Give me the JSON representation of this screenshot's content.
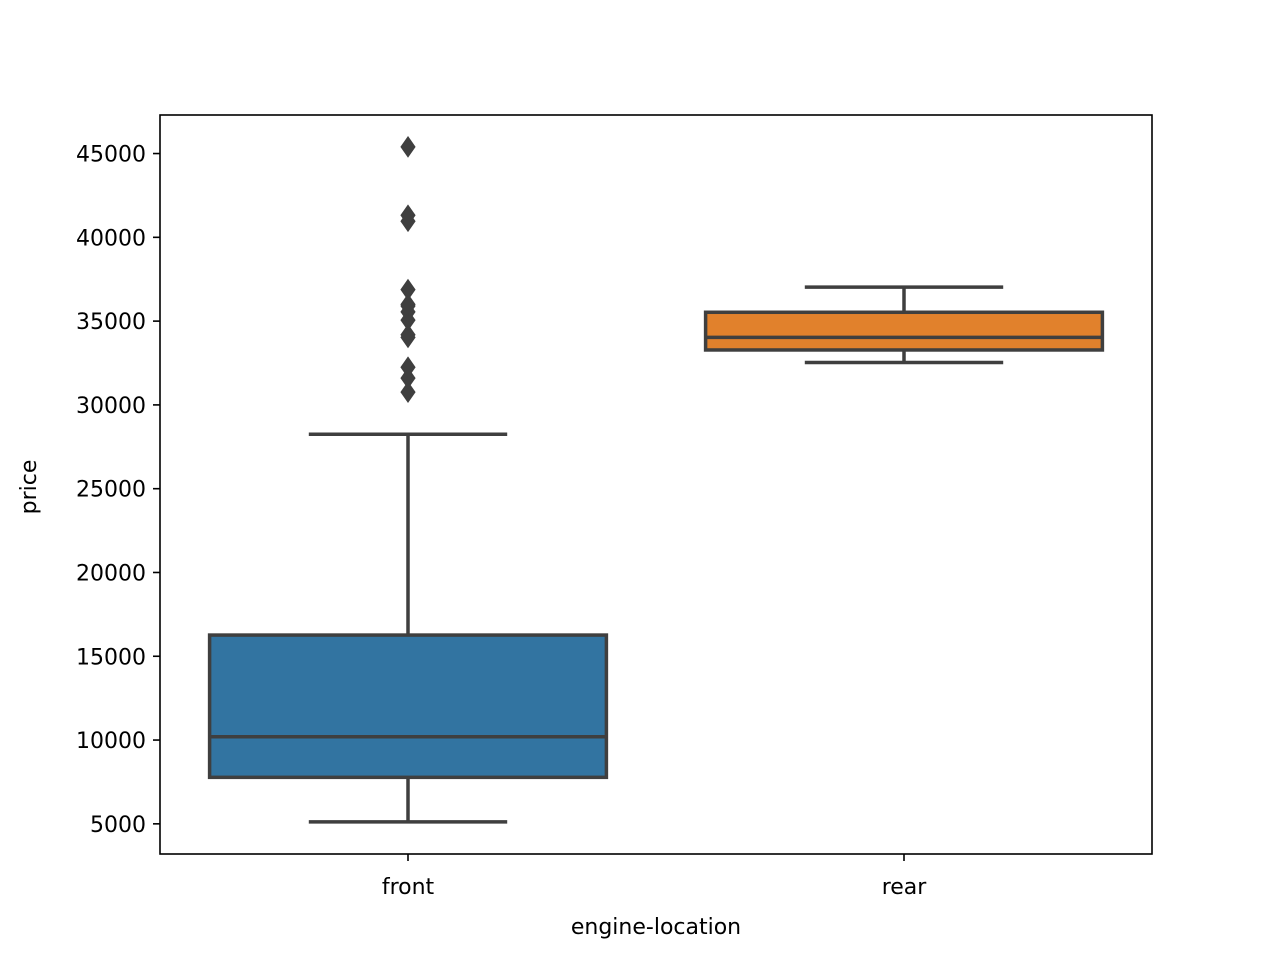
{
  "chart_data": {
    "type": "box",
    "xlabel": "engine-location",
    "ylabel": "price",
    "ylim": [
      3200,
      47300
    ],
    "yticks": [
      5000,
      10000,
      15000,
      20000,
      25000,
      30000,
      35000,
      40000,
      45000
    ],
    "grid": false,
    "categories": [
      "front",
      "rear"
    ],
    "boxes": [
      {
        "category": "front",
        "color": "#3274a1",
        "whisker_low": 5118,
        "q1": 7775,
        "median": 10198,
        "q3": 16265,
        "whisker_high": 28248,
        "outliers": [
          30760,
          31600,
          32250,
          34028,
          34184,
          35056,
          35550,
          35900,
          36000,
          36880,
          40960,
          41315,
          45400
        ]
      },
      {
        "category": "rear",
        "color": "#e1812c",
        "whisker_low": 32528,
        "q1": 33278,
        "median": 34028,
        "q3": 35528,
        "whisker_high": 37028,
        "outliers": []
      }
    ]
  }
}
